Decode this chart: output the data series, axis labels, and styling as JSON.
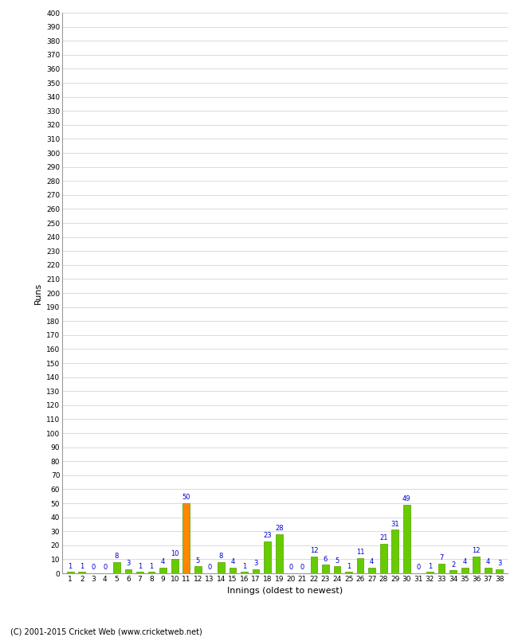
{
  "xlabel": "Innings (oldest to newest)",
  "ylabel": "Runs",
  "values": [
    1,
    1,
    0,
    0,
    8,
    3,
    1,
    1,
    4,
    10,
    50,
    5,
    0,
    8,
    4,
    1,
    3,
    23,
    28,
    0,
    0,
    12,
    6,
    5,
    1,
    11,
    4,
    21,
    31,
    49,
    0,
    1,
    7,
    2,
    4,
    12,
    4,
    3
  ],
  "labels": [
    "1",
    "2",
    "3",
    "4",
    "5",
    "6",
    "7",
    "8",
    "9",
    "10",
    "11",
    "12",
    "13",
    "14",
    "15",
    "16",
    "17",
    "18",
    "19",
    "20",
    "21",
    "22",
    "23",
    "24",
    "25",
    "26",
    "27",
    "28",
    "29",
    "30",
    "31",
    "32",
    "33",
    "34",
    "35",
    "36",
    "37",
    "38"
  ],
  "bar_colors": [
    "#66cc00",
    "#66cc00",
    "#66cc00",
    "#66cc00",
    "#66cc00",
    "#66cc00",
    "#66cc00",
    "#66cc00",
    "#66cc00",
    "#66cc00",
    "#ff8800",
    "#66cc00",
    "#66cc00",
    "#66cc00",
    "#66cc00",
    "#66cc00",
    "#66cc00",
    "#66cc00",
    "#66cc00",
    "#66cc00",
    "#66cc00",
    "#66cc00",
    "#66cc00",
    "#66cc00",
    "#66cc00",
    "#66cc00",
    "#66cc00",
    "#66cc00",
    "#66cc00",
    "#66cc00",
    "#66cc00",
    "#66cc00",
    "#66cc00",
    "#66cc00",
    "#66cc00",
    "#66cc00",
    "#66cc00",
    "#66cc00"
  ],
  "ylim": [
    0,
    400
  ],
  "ytick_step": 10,
  "value_label_color": "#0000cc",
  "background_color": "#ffffff",
  "grid_color": "#cccccc",
  "bar_edge_color": "#559900",
  "copyright": "(C) 2001-2015 Cricket Web (www.cricketweb.net)"
}
